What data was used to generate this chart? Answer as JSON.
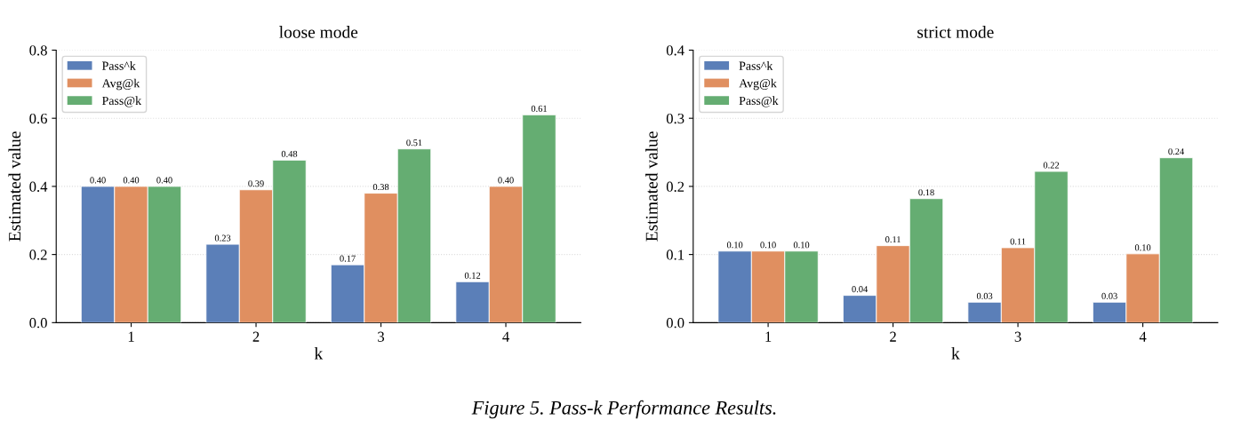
{
  "chart_data": [
    {
      "type": "bar",
      "title": "loose mode",
      "xlabel": "k",
      "ylabel": "Estimated value",
      "categories": [
        "1",
        "2",
        "3",
        "4"
      ],
      "ylim": [
        0,
        0.8
      ],
      "yticks": [
        {
          "value": 0,
          "label": "0.0"
        },
        0.2,
        0.4,
        0.6,
        0.8
      ],
      "grid": "y",
      "legend": "top left",
      "series": [
        {
          "name": "Pass^k",
          "color": "#5b7fb8",
          "values": [
            0.4,
            0.23,
            0.17,
            0.12
          ],
          "value_labels": [
            "0.40",
            "0.23",
            "0.17",
            "0.12"
          ]
        },
        {
          "name": "Avg@k",
          "color": "#e08f60",
          "values": [
            0.4,
            0.39,
            0.38,
            0.4
          ],
          "value_labels": [
            "0.40",
            "0.39",
            "0.38",
            "0.40"
          ]
        },
        {
          "name": "Pass@k",
          "color": "#65ad72",
          "values": [
            0.4,
            0.477,
            0.51,
            0.61
          ],
          "value_labels": [
            "0.40",
            "0.48",
            "0.51",
            "0.61"
          ]
        }
      ],
      "annotations": [
        "Figure 5. Pass-k Performance Results."
      ]
    },
    {
      "type": "bar",
      "title": "strict mode",
      "xlabel": "k",
      "ylabel": "Estimated value",
      "categories": [
        "1",
        "2",
        "3",
        "4"
      ],
      "ylim": [
        0,
        0.4
      ],
      "yticks": [
        {
          "value": 0,
          "label": "0.0"
        },
        0.1,
        0.2,
        0.3,
        0.4
      ],
      "grid": "y",
      "legend": "top left",
      "series": [
        {
          "name": "Pass^k",
          "color": "#5b7fb8",
          "values": [
            0.105,
            0.04,
            0.03,
            0.03
          ],
          "value_labels": [
            "0.10",
            "0.04",
            "0.03",
            "0.03"
          ]
        },
        {
          "name": "Avg@k",
          "color": "#e08f60",
          "values": [
            0.105,
            0.113,
            0.11,
            0.101
          ],
          "value_labels": [
            "0.10",
            "0.11",
            "0.11",
            "0.10"
          ]
        },
        {
          "name": "Pass@k",
          "color": "#65ad72",
          "values": [
            0.105,
            0.182,
            0.222,
            0.242
          ],
          "value_labels": [
            "0.10",
            "0.18",
            "0.22",
            "0.24"
          ]
        }
      ]
    }
  ]
}
